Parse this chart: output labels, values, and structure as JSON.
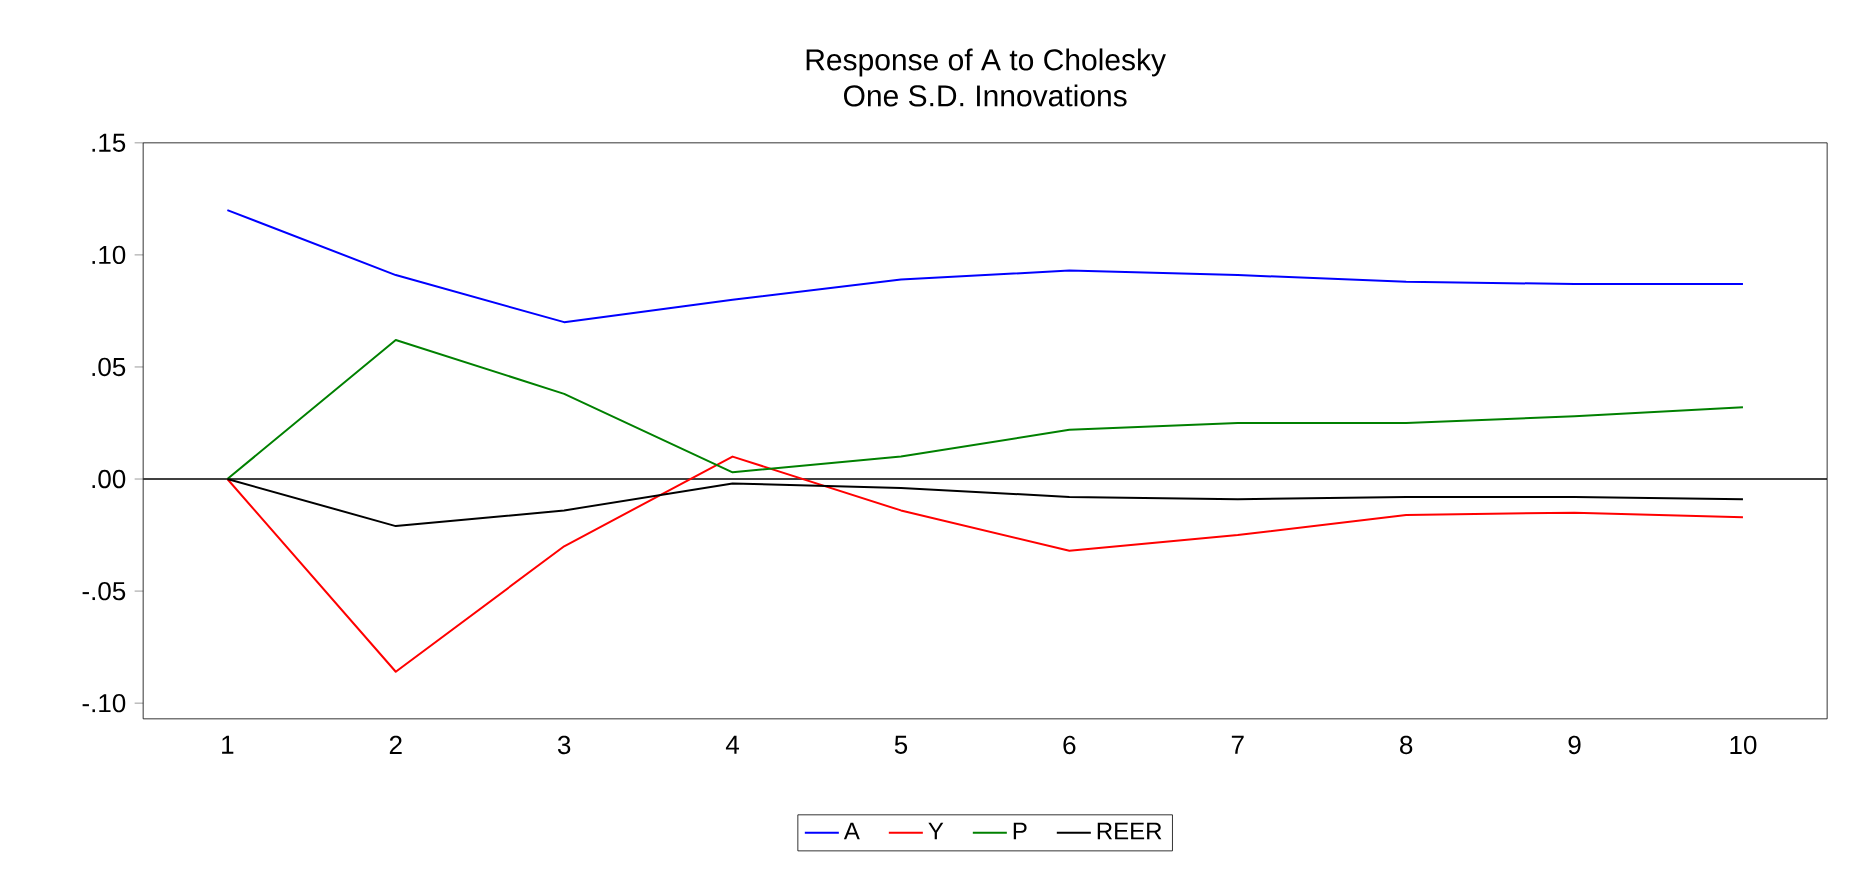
{
  "chart_data": {
    "type": "line",
    "title": "Response of A to Cholesky",
    "subtitle": "One S.D. Innovations",
    "categories": [
      "1",
      "2",
      "3",
      "4",
      "5",
      "6",
      "7",
      "8",
      "9",
      "10"
    ],
    "series": [
      {
        "name": "A",
        "color": "#0000ff",
        "values": [
          0.12,
          0.091,
          0.07,
          0.08,
          0.089,
          0.093,
          0.091,
          0.088,
          0.087,
          0.087
        ]
      },
      {
        "name": "Y",
        "color": "#ff0000",
        "values": [
          0.0,
          -0.086,
          -0.03,
          0.01,
          -0.014,
          -0.032,
          -0.025,
          -0.016,
          -0.015,
          -0.017
        ]
      },
      {
        "name": "P",
        "color": "#008000",
        "values": [
          0.0,
          0.062,
          0.038,
          0.003,
          0.01,
          0.022,
          0.025,
          0.025,
          0.028,
          0.032
        ]
      },
      {
        "name": "REER",
        "color": "#000000",
        "values": [
          0.0,
          -0.021,
          -0.014,
          -0.002,
          -0.004,
          -0.008,
          -0.009,
          -0.008,
          -0.008,
          -0.009
        ]
      }
    ],
    "ylim": [
      -0.107,
      0.15
    ],
    "yticks": [
      {
        "value": -0.1,
        "label": "-.10"
      },
      {
        "value": -0.05,
        "label": "-.05"
      },
      {
        "value": 0,
        "label": ".00"
      },
      {
        "value": 0.05,
        "label": ".05"
      },
      {
        "value": 0.1,
        "label": ".10"
      },
      {
        "value": 0.15,
        "label": ".15"
      }
    ],
    "ref_lines": [
      {
        "axis": "y",
        "value": 0,
        "color": "#000000"
      }
    ],
    "legend": "bottom"
  }
}
